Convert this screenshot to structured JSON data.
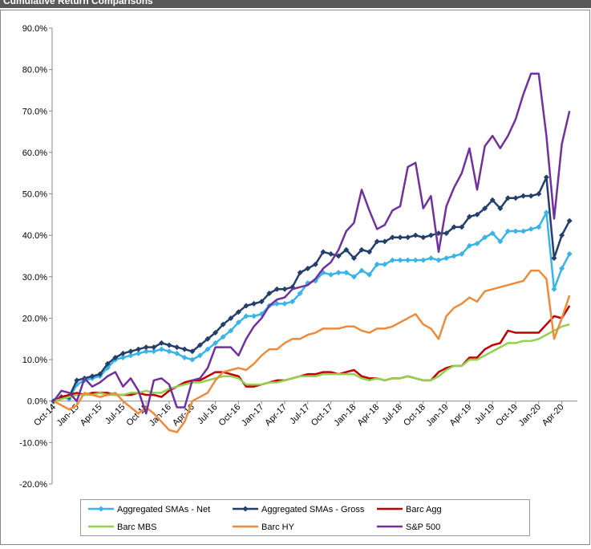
{
  "chart_data": {
    "type": "line",
    "title": "Cumulative Return Comparisons",
    "categories": [
      "Oct-14",
      null,
      null,
      "Jan-15",
      null,
      null,
      "Apr-15",
      null,
      null,
      "Jul-15",
      null,
      null,
      "Oct-15",
      null,
      null,
      "Jan-16",
      null,
      null,
      "Apr-16",
      null,
      null,
      "Jul-16",
      null,
      null,
      "Oct-16",
      null,
      null,
      "Jan-17",
      null,
      null,
      "Apr-17",
      null,
      null,
      "Jul-17",
      null,
      null,
      "Oct-17",
      null,
      null,
      "Jan-18",
      null,
      null,
      "Apr-18",
      null,
      null,
      "Jul-18",
      null,
      null,
      "Oct-18",
      null,
      null,
      "Jan-19",
      null,
      null,
      "Apr-19",
      null,
      null,
      "Jul-19",
      null,
      null,
      "Oct-19",
      null,
      null,
      "Jan-20",
      null,
      null,
      "Apr-20",
      null
    ],
    "series": [
      {
        "name": "Aggregated SMAs - Net",
        "color": "#3ab4e6",
        "marker": "diamond",
        "values": [
          0,
          1,
          0.5,
          4,
          5,
          5.5,
          6,
          8,
          10,
          10.5,
          11,
          11.5,
          12,
          12,
          12.5,
          12,
          11.5,
          10.5,
          10,
          11,
          12.5,
          14,
          15.5,
          17,
          19,
          20.5,
          20.5,
          21,
          23,
          23.5,
          23.5,
          24,
          26,
          28.5,
          29,
          31,
          30.5,
          31,
          31,
          30,
          31.5,
          30.5,
          33,
          33,
          34,
          34,
          34,
          34,
          34,
          34.5,
          34,
          34.5,
          35,
          35.5,
          37.5,
          38,
          39.5,
          40.5,
          38.5,
          41,
          41,
          41,
          41.5,
          42,
          45.5,
          27,
          32,
          35.5
        ]
      },
      {
        "name": "Aggregated SMAs - Gross",
        "color": "#243f6b",
        "marker": "diamond",
        "values": [
          0,
          1,
          1,
          5,
          5.5,
          6,
          6.5,
          9,
          10.5,
          11.5,
          12,
          12.5,
          13,
          13,
          14,
          13.5,
          13,
          12.5,
          12,
          13.5,
          15,
          16.5,
          18.5,
          20,
          21.5,
          23,
          23.5,
          24,
          26,
          27,
          27,
          27.5,
          31,
          32,
          33,
          36,
          35.5,
          35,
          36.5,
          34.5,
          36.5,
          36,
          38.5,
          38.5,
          39.5,
          39.5,
          39.5,
          40,
          39.5,
          40,
          40.5,
          40.5,
          42,
          42,
          44.5,
          45,
          46.5,
          48.5,
          46.5,
          49,
          49,
          49.5,
          49.5,
          50,
          54,
          34.5,
          40,
          43.5
        ]
      },
      {
        "name": "Barc Agg",
        "color": "#c00000",
        "values": [
          0,
          1,
          1.5,
          2,
          1.5,
          2,
          2,
          2,
          1.5,
          1.5,
          1.5,
          2,
          1.5,
          1.5,
          1,
          2.5,
          3.5,
          4.5,
          5,
          5,
          6,
          7,
          7,
          6.5,
          6,
          3.5,
          3.5,
          4,
          4.5,
          5,
          5,
          5.5,
          6,
          6.5,
          6.5,
          7,
          7,
          6.5,
          7,
          7.5,
          6,
          5.5,
          5.5,
          5,
          5.5,
          5.5,
          6,
          5.5,
          5,
          5,
          7,
          8,
          8.5,
          8.5,
          10.5,
          10.5,
          12.5,
          13.5,
          14,
          17,
          16.5,
          16.5,
          16.5,
          16.5,
          18.5,
          20.5,
          20,
          23
        ]
      },
      {
        "name": "Barc MBS",
        "color": "#92d050",
        "values": [
          0,
          0.5,
          1,
          1.5,
          1.5,
          1.5,
          2,
          1.5,
          1.5,
          1.5,
          2,
          2,
          2.5,
          2,
          2,
          3,
          3.5,
          4,
          4.5,
          4.5,
          5,
          5.5,
          6,
          6,
          5.5,
          4,
          4,
          4,
          4.5,
          4.5,
          5,
          5.5,
          6,
          6,
          6,
          6.5,
          6.5,
          6.5,
          6.5,
          6.5,
          5.5,
          5,
          5.5,
          5,
          5.5,
          5.5,
          6,
          5.5,
          5,
          5,
          6,
          7.5,
          8.5,
          8.5,
          10,
          10,
          11,
          12,
          13,
          14,
          14,
          14.5,
          14.5,
          15,
          16,
          17,
          18,
          18.5
        ]
      },
      {
        "name": "Barc HY",
        "color": "#ed8b3b",
        "values": [
          0,
          -1,
          -2,
          -1,
          2,
          1.5,
          1,
          1.5,
          2,
          0,
          -1.5,
          -3,
          -1.5,
          -3,
          -5,
          -7,
          -7.5,
          -5,
          0,
          1,
          2,
          5,
          7,
          7.5,
          8,
          7.5,
          9,
          11,
          12.5,
          12.5,
          14,
          15,
          15,
          16,
          16.5,
          17.5,
          17.5,
          17.5,
          18,
          18,
          17,
          16.5,
          17.5,
          17.5,
          18,
          19,
          20,
          21,
          18.5,
          17.5,
          15,
          20.5,
          22.5,
          23.5,
          25,
          24,
          26.5,
          27,
          27.5,
          28,
          28.5,
          29,
          31.5,
          31.5,
          29.5,
          15,
          20,
          25.5
        ]
      },
      {
        "name": "S&P 500",
        "color": "#7030a0",
        "values": [
          0,
          2.5,
          2,
          0,
          5.5,
          3.5,
          4.5,
          6,
          7,
          3.5,
          5.5,
          2.5,
          -3,
          5,
          5.5,
          4,
          -1.5,
          -1.5,
          5,
          5.5,
          8,
          13,
          13,
          13,
          11,
          15,
          18,
          20,
          23,
          24.5,
          25,
          27,
          27.5,
          28,
          29.5,
          32,
          33.5,
          36.5,
          41,
          43,
          51,
          46,
          41.5,
          42.5,
          46,
          47,
          56.5,
          57.5,
          46.5,
          49.5,
          36,
          47,
          51.5,
          55,
          61,
          51,
          61.5,
          64,
          61,
          64,
          68,
          74,
          79,
          79,
          64,
          44,
          62,
          70
        ]
      }
    ],
    "ylim": [
      -20,
      90
    ],
    "yticks": [
      {
        "value": -20,
        "label": "-20.0%"
      },
      {
        "value": -10,
        "label": "-10.0%"
      },
      {
        "value": 0,
        "label": "0.0%"
      },
      {
        "value": 10,
        "label": "10.0%"
      },
      {
        "value": 20,
        "label": "20.0%"
      },
      {
        "value": 30,
        "label": "30.0%"
      },
      {
        "value": 40,
        "label": "40.0%"
      },
      {
        "value": 50,
        "label": "50.0%"
      },
      {
        "value": 60,
        "label": "60.0%"
      },
      {
        "value": 70,
        "label": "70.0%"
      },
      {
        "value": 80,
        "label": "80.0%"
      },
      {
        "value": 90,
        "label": "90.0%"
      }
    ],
    "grid": false
  }
}
